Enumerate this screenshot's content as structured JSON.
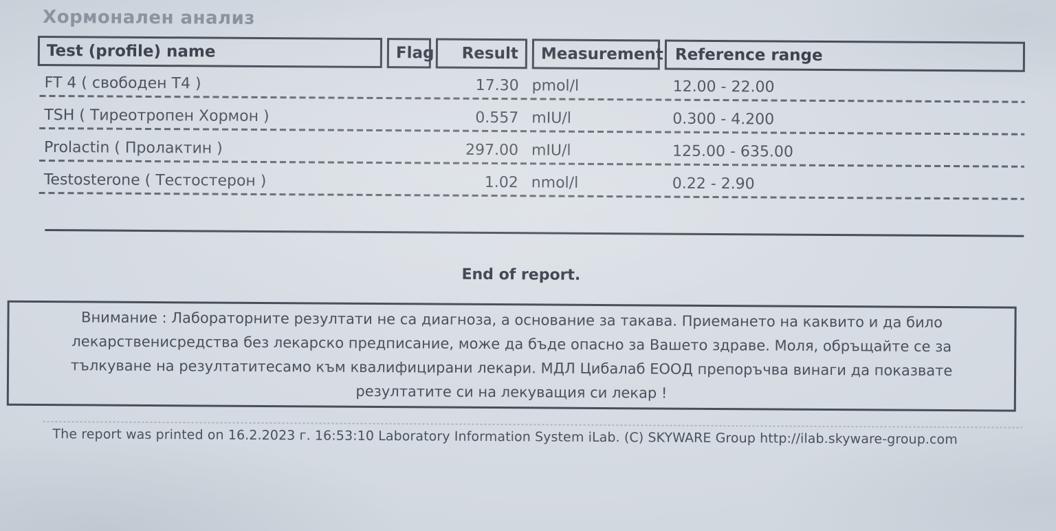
{
  "title": "Хормонален анализ",
  "table": {
    "headers": {
      "name": "Test (profile) name",
      "flag": "Flag",
      "result": "Result",
      "measurement": "Measurement",
      "reference": "Reference range"
    },
    "rows": [
      {
        "name": "FT 4 ( свободен Т4 )",
        "flag": "",
        "result": "17.30",
        "measurement": "pmol/l",
        "reference": "12.00 - 22.00"
      },
      {
        "name": "TSH ( Тиреотропен Хормон )",
        "flag": "",
        "result": "0.557",
        "measurement": "mIU/l",
        "reference": "0.300 - 4.200"
      },
      {
        "name": "Prolactin ( Пролактин )",
        "flag": "",
        "result": "297.00",
        "measurement": "mIU/l",
        "reference": "125.00 - 635.00"
      },
      {
        "name": "Testosterone ( Тестостерон )",
        "flag": "",
        "result": "1.02",
        "measurement": "nmol/l",
        "reference": "0.22 - 2.90"
      }
    ]
  },
  "end_of_report": "End of report.",
  "warning_text": "Внимание : Лабораторните резултати не са диагноза, а основание за такава. Приемането на каквито и да било лекарственисредства без лекарско предписание, може да бъде опасно за Вашето здраве. Моля, обръщайте се за тълкуване на резултатитесамо към квалифицирани лекари. МДЛ Цибалаб ЕООД препоръчва винаги да показвате резултатите си на лекуващия си лекар !",
  "footer": "The report was printed on 16.2.2023 г. 16:53:10 Laboratory Information System iLab. (C) SKYWARE Group http://ilab.skyware-group.com",
  "colors": {
    "paper": "#d6dbe2",
    "ink": "#454c57",
    "title_gray": "#8d939e"
  }
}
